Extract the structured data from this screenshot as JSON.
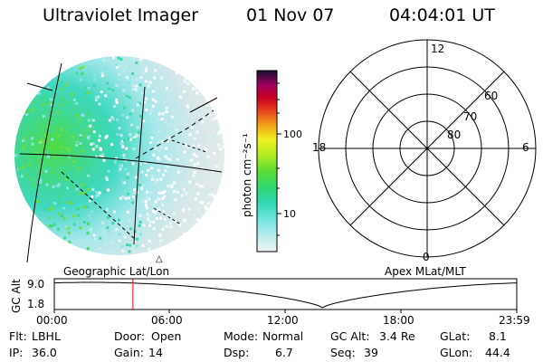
{
  "header": {
    "instrument": "Ultraviolet Imager",
    "date": "01 Nov 07",
    "time": "04:04:01 UT"
  },
  "colorbar": {
    "unit_label": "photon cm⁻²s⁻¹",
    "ticks": [
      "100",
      "10"
    ]
  },
  "polar_plot": {
    "mlt_labels": [
      "12",
      "18",
      "6",
      "0"
    ],
    "lat_labels": [
      "60",
      "70",
      "80"
    ]
  },
  "panel_labels": {
    "left": "Geographic Lat/Lon",
    "right": "Apex MLat/MLT"
  },
  "altitude_plot": {
    "axis_label": "GC Alt",
    "y_ticks": [
      "9.0",
      "1.8"
    ],
    "x_ticks": [
      "00:00",
      "06:00",
      "12:00",
      "18:00",
      "23:59"
    ],
    "current_time_fraction": 0.17
  },
  "info": {
    "flt_label": "Flt:",
    "flt_value": "LBHL",
    "ip_label": "IP:",
    "ip_value": "36.0",
    "door_label": "Door:",
    "door_value": "Open",
    "gain_label": "Gain:",
    "gain_value": "14",
    "mode_label": "Mode:",
    "mode_value": "Normal",
    "dsp_label": "Dsp:",
    "dsp_value": "6.7",
    "gcalt_label": "GC Alt:",
    "gcalt_value": "3.4 Re",
    "seq_label": "Seq:",
    "seq_value": "39",
    "glat_label": "GLat:",
    "glat_value": "8.1",
    "glon_label": "GLon:",
    "glon_value": "44.4"
  },
  "colors": {
    "colorbar_stops": [
      "#e6f0f0",
      "#b8ecec",
      "#5ce0d0",
      "#30d8a0",
      "#40d840",
      "#a0e820",
      "#f0f020",
      "#f0a020",
      "#e04020",
      "#c00020",
      "#a00050",
      "#600060",
      "#100030"
    ]
  }
}
